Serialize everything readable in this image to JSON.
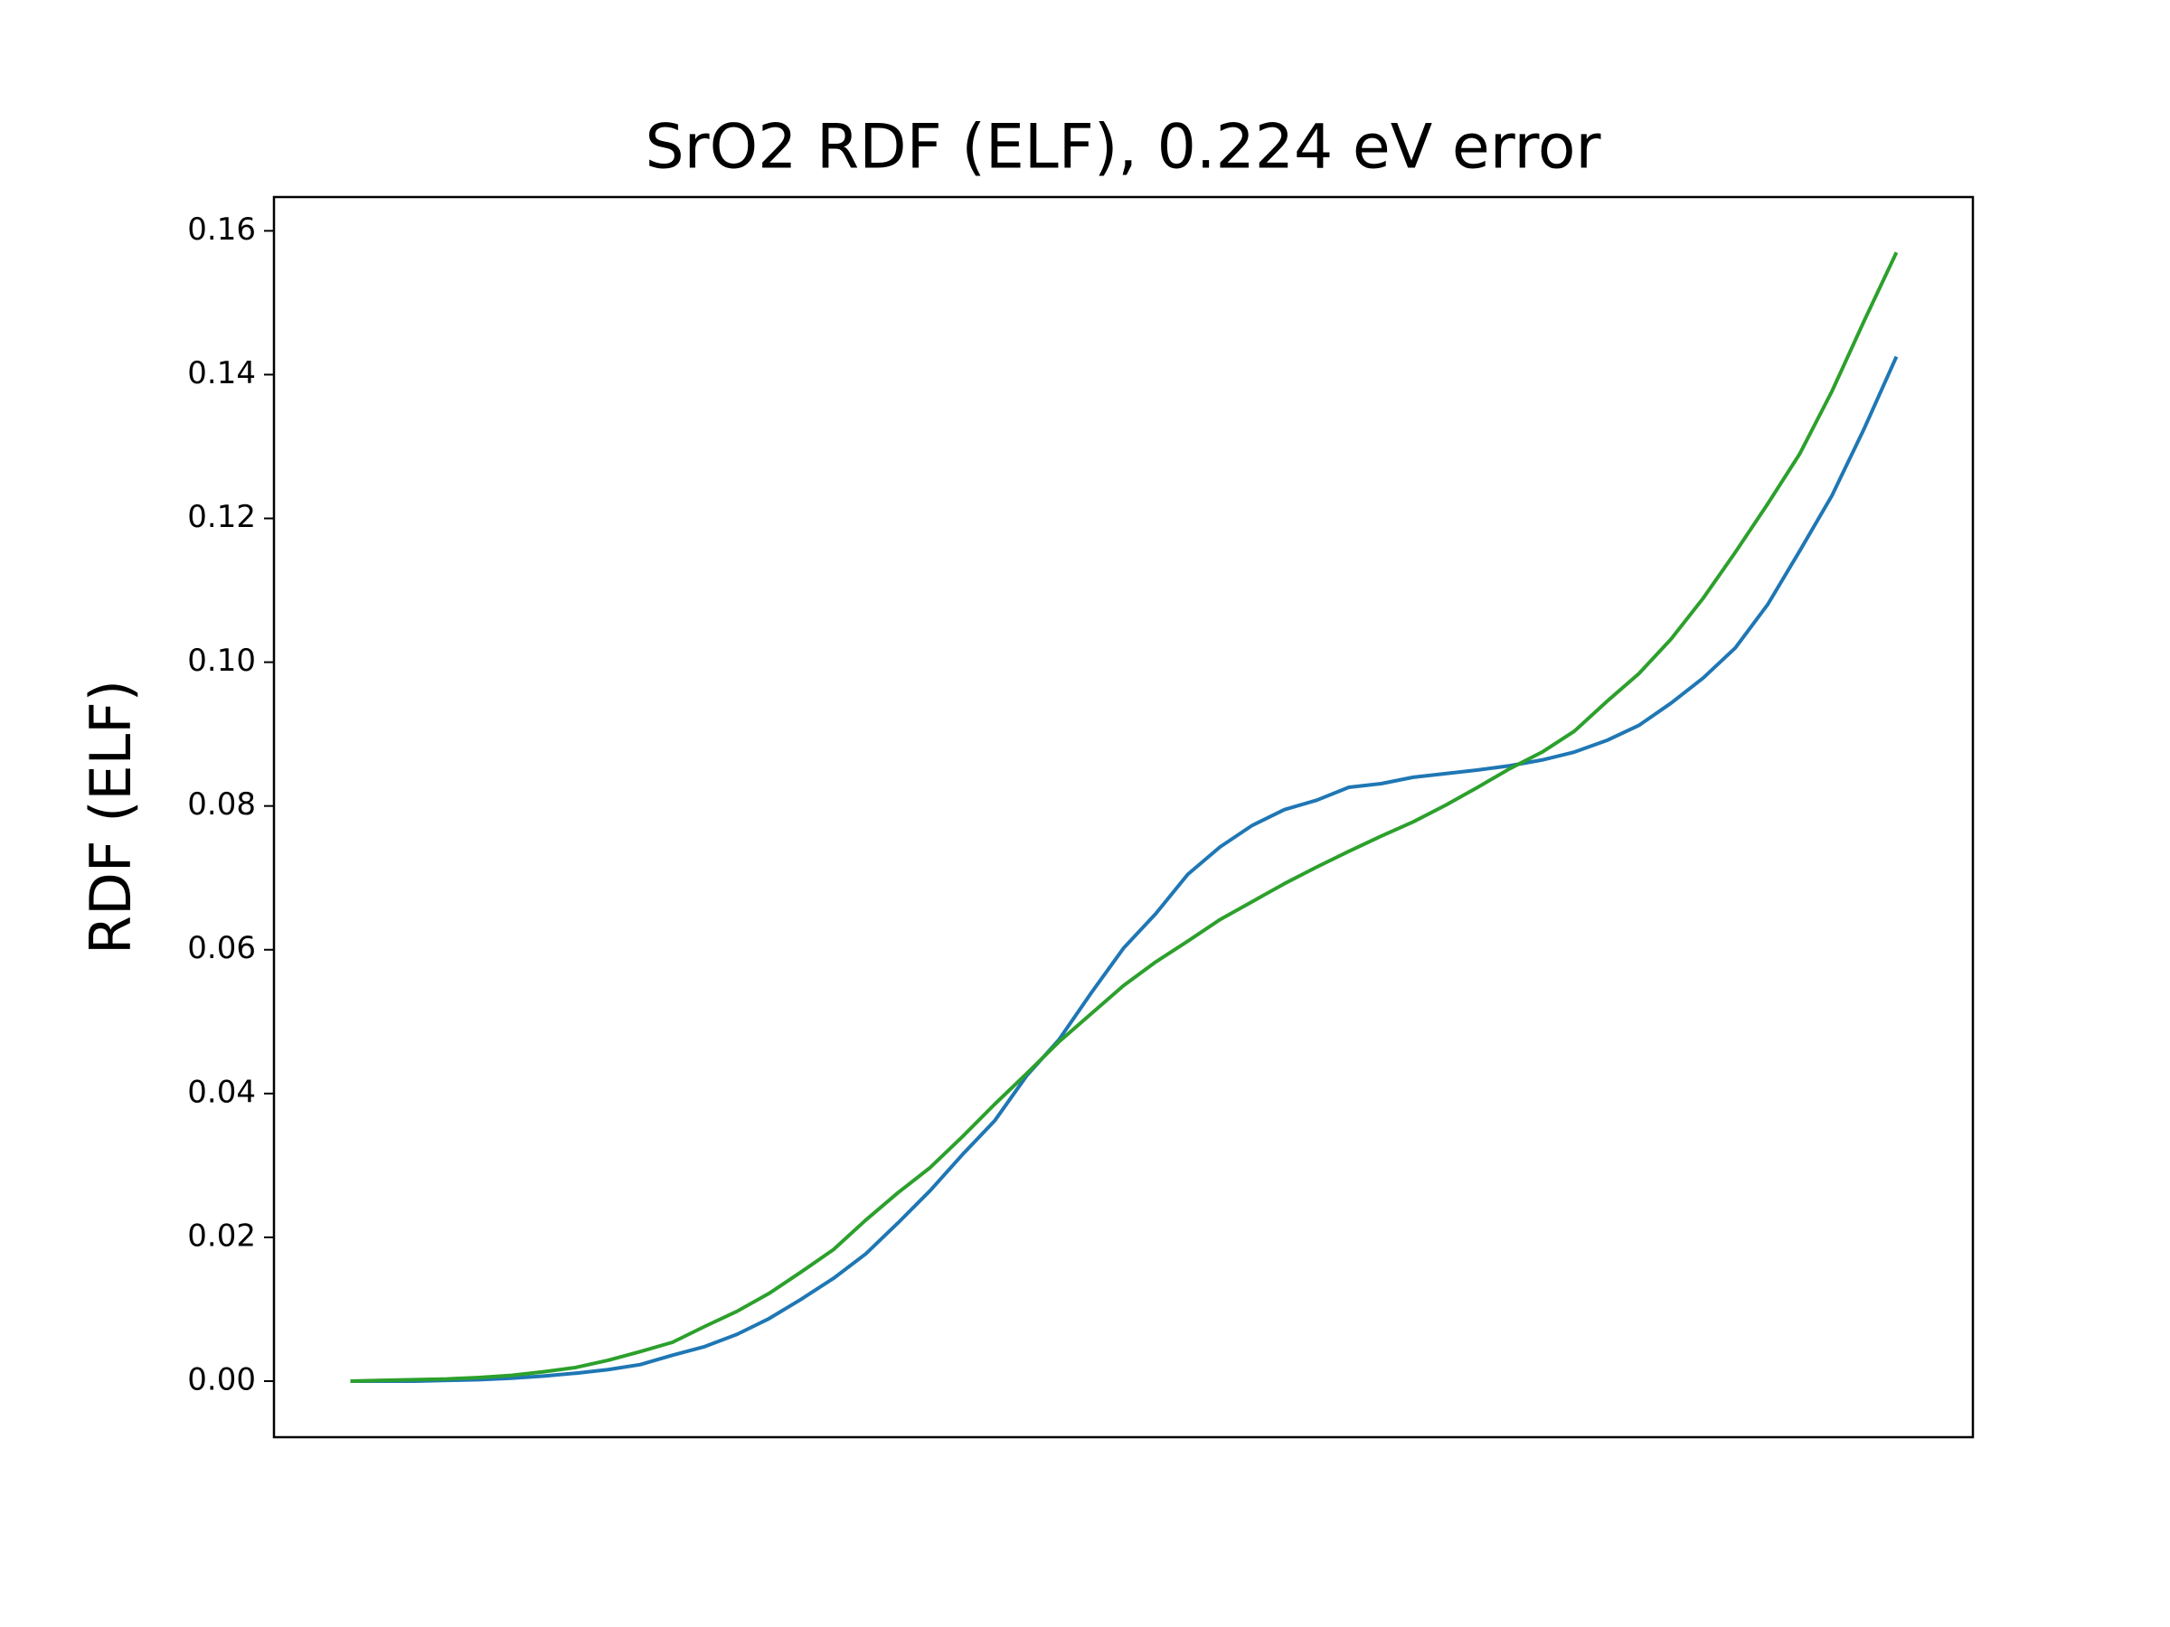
{
  "chart_data": {
    "type": "line",
    "title": "SrO2 RDF (ELF), 0.224 eV error",
    "ylabel": "RDF (ELF)",
    "ylim": [
      -0.0078,
      0.1647
    ],
    "yticks": [
      {
        "value": 0,
        "label": "0.00"
      },
      {
        "value": 0.02,
        "label": "0.02"
      },
      {
        "value": 0.04,
        "label": "0.04"
      },
      {
        "value": 0.06,
        "label": "0.06"
      },
      {
        "value": 0.08,
        "label": "0.08"
      },
      {
        "value": 0.1,
        "label": "0.10"
      },
      {
        "value": 0.12,
        "label": "0.12"
      },
      {
        "value": 0.14,
        "label": "0.14"
      },
      {
        "value": 0.16,
        "label": "0.16"
      }
    ],
    "grid": false,
    "series": [
      {
        "color": "#1f77b4",
        "values": [
          0,
          0,
          0,
          0.0001,
          0.0002,
          0.0004,
          0.0007,
          0.0011,
          0.0016,
          0.0023,
          0.0036,
          0.0048,
          0.0065,
          0.0087,
          0.0114,
          0.0143,
          0.0177,
          0.022,
          0.0265,
          0.0315,
          0.0362,
          0.0425,
          0.0475,
          0.054,
          0.0602,
          0.065,
          0.0705,
          0.0743,
          0.0773,
          0.0795,
          0.0808,
          0.0826,
          0.0831,
          0.084,
          0.0845,
          0.085,
          0.0856,
          0.0864,
          0.0875,
          0.0891,
          0.0912,
          0.0943,
          0.0978,
          0.102,
          0.108,
          0.1155,
          0.1232,
          0.1325,
          0.1425
        ]
      },
      {
        "color": "#2ca02c",
        "values": [
          0,
          0.0001,
          0.0002,
          0.0003,
          0.0005,
          0.0008,
          0.0013,
          0.0019,
          0.0029,
          0.0041,
          0.0054,
          0.0076,
          0.0097,
          0.0122,
          0.0152,
          0.0183,
          0.0224,
          0.0262,
          0.0297,
          0.034,
          0.0385,
          0.0428,
          0.0472,
          0.0511,
          0.055,
          0.0583,
          0.0612,
          0.0642,
          0.0667,
          0.0692,
          0.0715,
          0.0737,
          0.0758,
          0.0778,
          0.0801,
          0.0826,
          0.0852,
          0.0875,
          0.0904,
          0.0945,
          0.0984,
          0.1032,
          0.1089,
          0.1153,
          0.122,
          0.129,
          0.1377,
          0.1475,
          0.157
        ]
      }
    ]
  }
}
